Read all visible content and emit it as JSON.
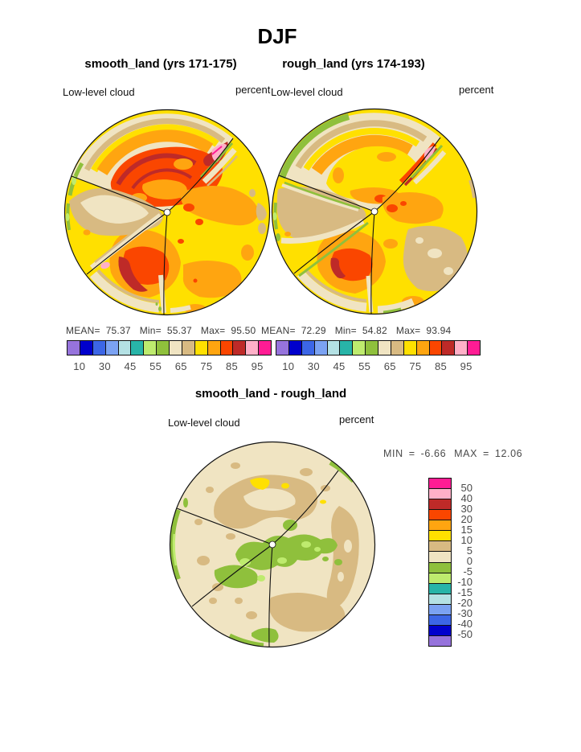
{
  "figure": {
    "title": "DJF"
  },
  "palette": {
    "purple": "#9673DC",
    "darkblue": "#0000CC",
    "blue": "#3C66E6",
    "cornflower": "#7BA2F2",
    "palecyan": "#B4E1E4",
    "teal": "#28B4A8",
    "lightgreen": "#BEEB6E",
    "olive": "#8FC03C",
    "cream": "#F0E4C2",
    "tan": "#D8BA82",
    "yellow": "#FFE000",
    "orange": "#FFA510",
    "redorange": "#FA4600",
    "darkred": "#BE2A28",
    "pink": "#FFB0C8",
    "magenta": "#FF1C94"
  },
  "panels": [
    {
      "title": "smooth_land (yrs 171-175)",
      "variable": "Low-level cloud",
      "units": "percent",
      "stats": {
        "mean_label": "MEAN=",
        "mean": "75.37",
        "min_label": "Min=",
        "min": "55.37",
        "max_label": "Max=",
        "max": "95.50"
      }
    },
    {
      "title": "rough_land (yrs 174-193)",
      "variable": "Low-level cloud",
      "units": "percent",
      "stats": {
        "mean_label": "MEAN=",
        "mean": "72.29",
        "min_label": "Min=",
        "min": "54.82",
        "max_label": "Max=",
        "max": "93.94"
      }
    }
  ],
  "difference_panel": {
    "title": "smooth_land - rough_land",
    "variable": "Low-level cloud",
    "units": "percent",
    "min_label": "MIN",
    "eq1": "=",
    "min": "-6.66",
    "max_label": "MAX",
    "eq2": "=",
    "max": "12.06"
  },
  "shared_colorbar": {
    "ticks": [
      "10",
      "30",
      "45",
      "55",
      "65",
      "75",
      "85",
      "95"
    ],
    "color_order": [
      "purple",
      "darkblue",
      "blue",
      "cornflower",
      "palecyan",
      "teal",
      "lightgreen",
      "olive",
      "cream",
      "tan",
      "yellow",
      "orange",
      "redorange",
      "darkred",
      "pink",
      "magenta"
    ]
  },
  "diff_colorbar": {
    "labels": [
      "50",
      "40",
      "30",
      "20",
      "15",
      "10",
      "5",
      "0",
      "-5",
      "-10",
      "-15",
      "-20",
      "-30",
      "-40",
      "-50"
    ],
    "color_order": [
      "magenta",
      "pink",
      "darkred",
      "redorange",
      "orange",
      "yellow",
      "tan",
      "cream",
      "olive",
      "lightgreen",
      "teal",
      "palecyan",
      "cornflower",
      "blue",
      "darkblue",
      "purple"
    ]
  },
  "chart_data": [
    {
      "type": "heatmap",
      "subtype": "filled-contour polar cubed-sphere map",
      "season": "DJF",
      "title": "smooth_land (yrs 171-175)",
      "variable": "Low-level cloud",
      "units": "percent",
      "stats": {
        "mean": 75.37,
        "min": 55.37,
        "max": 95.5
      },
      "colorbar_ticks": [
        10,
        30,
        45,
        55,
        65,
        75,
        85,
        95
      ],
      "legend_position": "bottom"
    },
    {
      "type": "heatmap",
      "subtype": "filled-contour polar cubed-sphere map",
      "season": "DJF",
      "title": "rough_land (yrs 174-193)",
      "variable": "Low-level cloud",
      "units": "percent",
      "stats": {
        "mean": 72.29,
        "min": 54.82,
        "max": 93.94
      },
      "colorbar_ticks": [
        10,
        30,
        45,
        55,
        65,
        75,
        85,
        95
      ],
      "legend_position": "bottom"
    },
    {
      "type": "heatmap",
      "subtype": "filled-contour polar cubed-sphere difference map",
      "season": "DJF",
      "title": "smooth_land - rough_land",
      "variable": "Low-level cloud",
      "units": "percent",
      "stats": {
        "min": -6.66,
        "max": 12.06
      },
      "colorbar_ticks": [
        50,
        40,
        30,
        20,
        15,
        10,
        5,
        0,
        -5,
        -10,
        -15,
        -20,
        -30,
        -40,
        -50
      ],
      "legend_position": "right"
    }
  ]
}
